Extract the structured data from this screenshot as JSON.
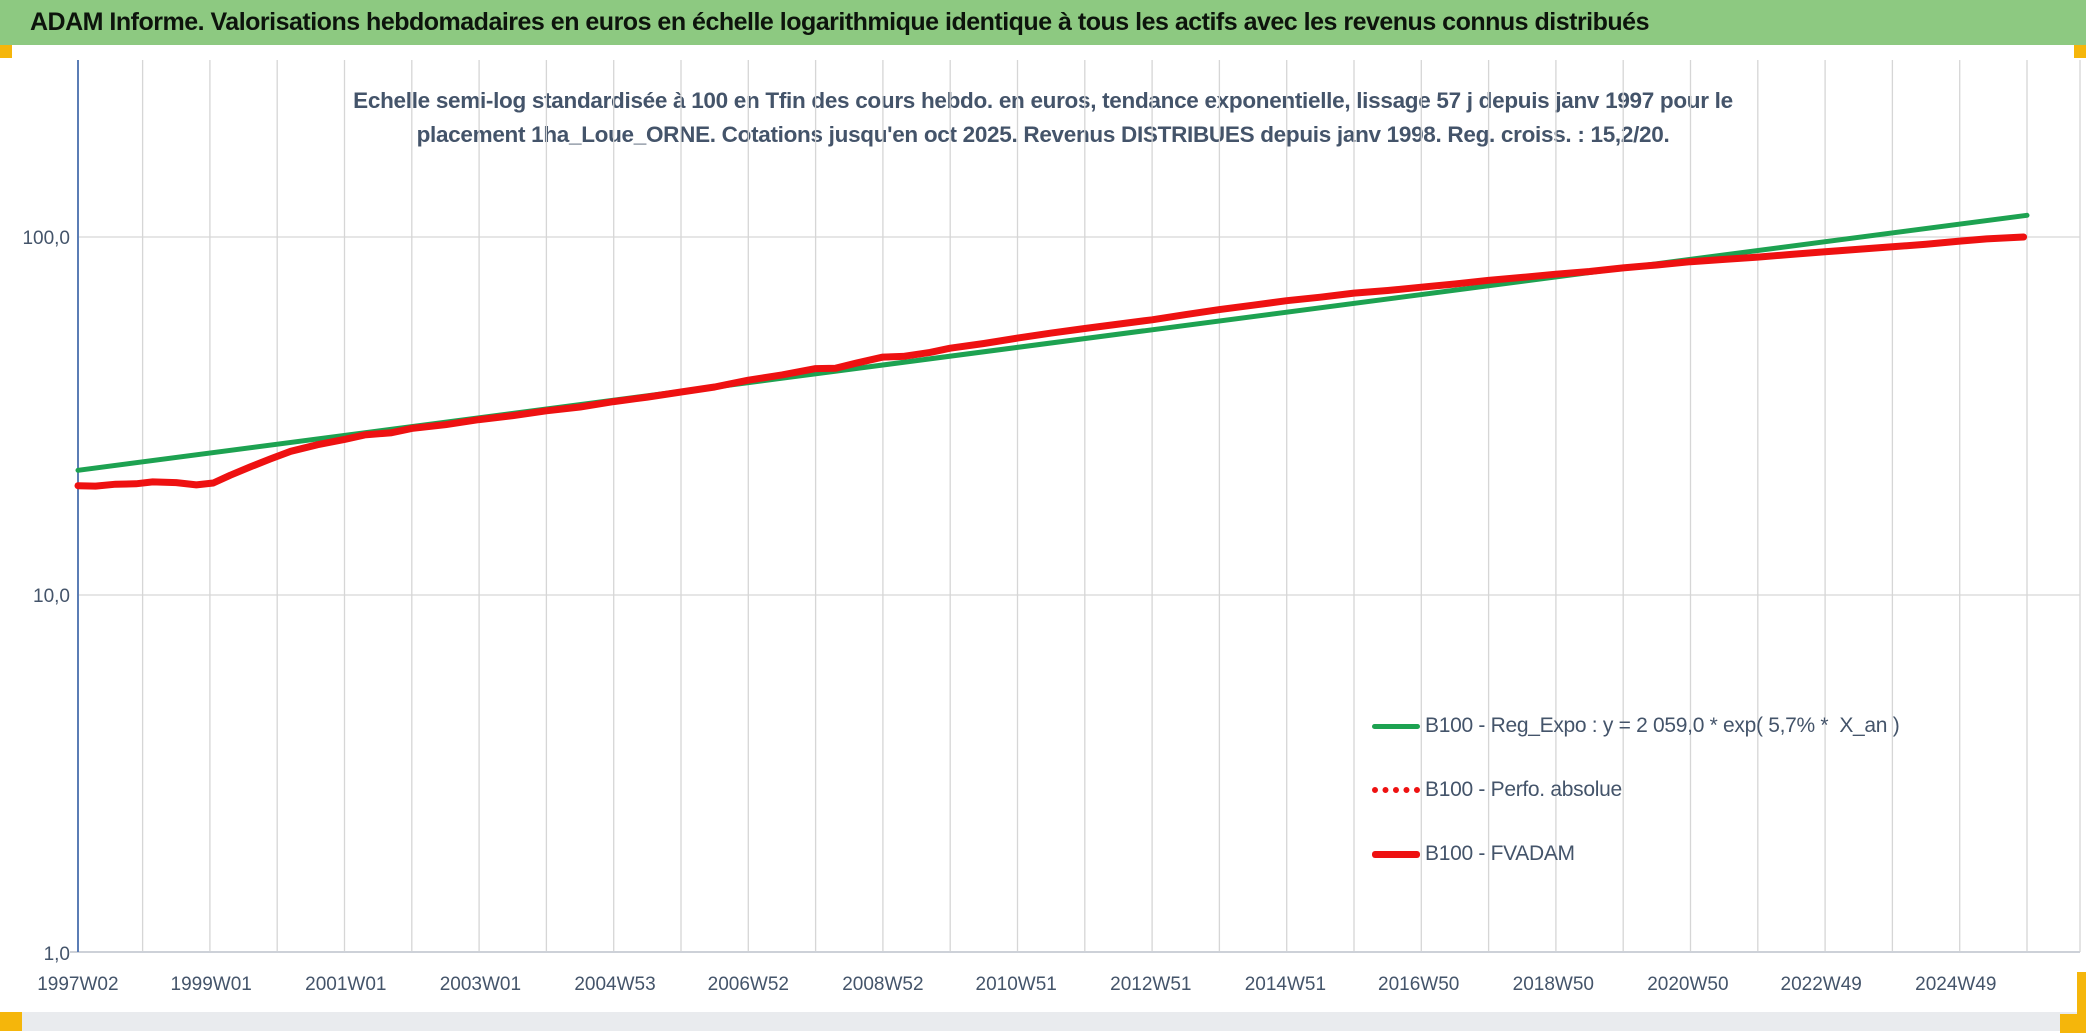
{
  "header": {
    "title": "ADAM Informe. Valorisations hebdomadaires en euros en échelle logarithmique identique à tous les actifs avec les revenus connus distribués",
    "background_color": "#8DC981",
    "accent_color": "#F5B60B"
  },
  "subtitle": {
    "line1": "Echelle semi-log standardisée à 100 en Tfin des cours hebdo. en euros, tendance exponentielle, lissage 57 j depuis janv 1997 pour le",
    "line2": "placement 1ha_Loue_ORNE. Cotations jusqu'en oct 2025. Revenus DISTRIBUES depuis janv 1998. Reg. croiss. : 15,2/20."
  },
  "chart_data": {
    "type": "line",
    "title": "Echelle semi-log standardisée à 100 en Tfin des cours hebdo. en euros, tendance exponentielle, lissage 57 j depuis janv 1997 pour le placement 1ha_Loue_ORNE. Cotations jusqu'en oct 2025. Revenus DISTRIBUES depuis janv 1998. Reg. croiss. : 15,2/20.",
    "x_axis": {
      "unit": "ISO week (yearWweek)",
      "tick_labels": [
        "1997W02",
        "1999W01",
        "2001W01",
        "2003W01",
        "2004W53",
        "2006W52",
        "2008W52",
        "2010W51",
        "2012W51",
        "2014W51",
        "2016W50",
        "2018W50",
        "2020W50",
        "2022W49",
        "2024W49"
      ],
      "range_years": [
        1997.04,
        2026.0
      ],
      "grid": "yearly"
    },
    "y_axis": {
      "scale": "log10",
      "tick_labels": [
        "100,0",
        "10,0",
        "1,0"
      ],
      "tick_values": [
        100,
        10,
        1
      ],
      "ylim": [
        1,
        200
      ],
      "grid": "decades"
    },
    "legend_position": "inside-bottom-right",
    "series": [
      {
        "name": "B100 - Reg_Expo : y = 2 059,0 * exp( 5,7% *  X_an )",
        "color": "#1DA251",
        "style": "solid",
        "width": 5,
        "points": [
          [
            1997.04,
            22.3
          ],
          [
            2026.0,
            115.0
          ]
        ]
      },
      {
        "name": "B100 - Perfo. absolue",
        "color": "#EE1111",
        "style": "dotted",
        "width": 6,
        "coincident_with": "B100 - FVADAM",
        "points": []
      },
      {
        "name": "B100 - FVADAM",
        "color": "#EE1111",
        "style": "solid",
        "width": 7,
        "points": [
          [
            1997.04,
            20.2
          ],
          [
            1997.3,
            20.15
          ],
          [
            1997.6,
            20.4
          ],
          [
            1997.9,
            20.45
          ],
          [
            1998.15,
            20.7
          ],
          [
            1998.5,
            20.6
          ],
          [
            1998.8,
            20.3
          ],
          [
            1999.05,
            20.55
          ],
          [
            1999.3,
            21.6
          ],
          [
            1999.6,
            22.8
          ],
          [
            1999.9,
            24.0
          ],
          [
            2000.2,
            25.2
          ],
          [
            2000.6,
            26.3
          ],
          [
            2001.0,
            27.2
          ],
          [
            2001.3,
            28.0
          ],
          [
            2001.7,
            28.4
          ],
          [
            2002.0,
            29.2
          ],
          [
            2002.5,
            29.9
          ],
          [
            2003.0,
            30.9
          ],
          [
            2003.5,
            31.7
          ],
          [
            2004.0,
            32.7
          ],
          [
            2004.5,
            33.5
          ],
          [
            2005.0,
            34.7
          ],
          [
            2005.5,
            35.7
          ],
          [
            2006.0,
            36.9
          ],
          [
            2006.5,
            38.1
          ],
          [
            2007.0,
            39.8
          ],
          [
            2007.5,
            41.2
          ],
          [
            2008.0,
            42.9
          ],
          [
            2008.3,
            43.0
          ],
          [
            2008.6,
            44.4
          ],
          [
            2009.0,
            46.2
          ],
          [
            2009.3,
            46.4
          ],
          [
            2009.7,
            47.6
          ],
          [
            2010.0,
            48.9
          ],
          [
            2010.5,
            50.4
          ],
          [
            2011.0,
            52.2
          ],
          [
            2011.5,
            53.9
          ],
          [
            2012.0,
            55.5
          ],
          [
            2012.5,
            57.1
          ],
          [
            2013.0,
            58.7
          ],
          [
            2013.5,
            60.7
          ],
          [
            2014.0,
            62.7
          ],
          [
            2014.5,
            64.5
          ],
          [
            2015.0,
            66.4
          ],
          [
            2015.5,
            67.9
          ],
          [
            2016.0,
            69.7
          ],
          [
            2016.5,
            70.9
          ],
          [
            2017.0,
            72.4
          ],
          [
            2017.5,
            73.9
          ],
          [
            2018.0,
            75.7
          ],
          [
            2018.5,
            77.1
          ],
          [
            2019.0,
            78.7
          ],
          [
            2019.5,
            80.1
          ],
          [
            2020.0,
            82.0
          ],
          [
            2020.5,
            83.5
          ],
          [
            2021.0,
            85.3
          ],
          [
            2021.5,
            86.6
          ],
          [
            2022.0,
            87.9
          ],
          [
            2022.5,
            89.4
          ],
          [
            2023.0,
            90.9
          ],
          [
            2023.5,
            92.4
          ],
          [
            2024.0,
            93.9
          ],
          [
            2024.5,
            95.4
          ],
          [
            2025.0,
            97.4
          ],
          [
            2025.4,
            98.8
          ],
          [
            2025.95,
            100.0
          ]
        ]
      }
    ],
    "colors": {
      "grid": "#D6D6D6",
      "axis_text": "#44546A",
      "y_axis_line": "#5B7DB5",
      "x_axis_line": "#CDD1D8"
    }
  }
}
